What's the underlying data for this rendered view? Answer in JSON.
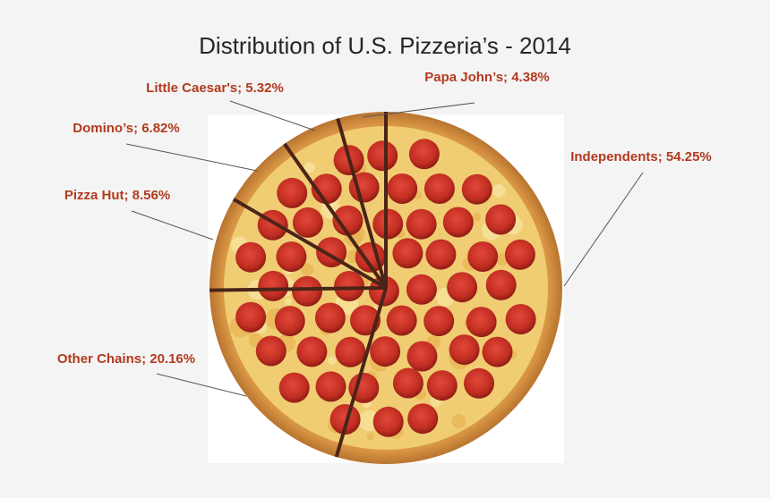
{
  "chart_data": {
    "type": "pie",
    "title": "Distribution of U.S. Pizzeria’s - 2014",
    "slices": [
      {
        "name": "Independents",
        "value": 54.25,
        "label": "Independents; 54.25%"
      },
      {
        "name": "Other Chains",
        "value": 20.16,
        "label": "Other Chains; 20.16%"
      },
      {
        "name": "Pizza Hut",
        "value": 8.56,
        "label": "Pizza Hut; 8.56%"
      },
      {
        "name": "Domino’s",
        "value": 6.82,
        "label": "Domino’s; 6.82%"
      },
      {
        "name": "Little Caesar's",
        "value": 5.32,
        "label": "Little Caesar's; 5.32%"
      },
      {
        "name": "Papa John’s",
        "value": 4.38,
        "label": "Papa John’s; 4.38%"
      }
    ],
    "start_angle": "12 o'clock",
    "direction": "clockwise",
    "label_color": "#b33a1f",
    "separator_color": "#4a2418",
    "fill": "pepperoni pizza"
  }
}
